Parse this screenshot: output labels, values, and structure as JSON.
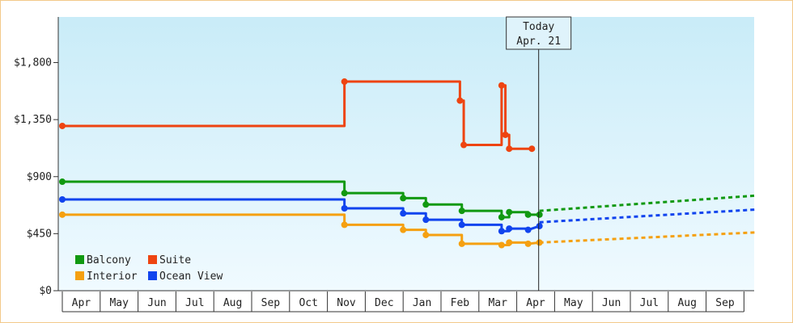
{
  "chart_data": {
    "type": "line",
    "title": "",
    "xlabel": "",
    "ylabel": "",
    "ylim": [
      0,
      2160
    ],
    "y_ticks": [
      {
        "value": 0,
        "label": "$0"
      },
      {
        "value": 450,
        "label": "$450"
      },
      {
        "value": 900,
        "label": "$900"
      },
      {
        "value": 1350,
        "label": "$1,350"
      },
      {
        "value": 1800,
        "label": "$1,800"
      }
    ],
    "x_months": [
      "Apr",
      "May",
      "Jun",
      "Jul",
      "Aug",
      "Sep",
      "Oct",
      "Nov",
      "Dec",
      "Jan",
      "Feb",
      "Mar",
      "Apr",
      "May",
      "Jun",
      "Jul",
      "Aug",
      "Sep"
    ],
    "x_range": [
      0,
      18.3
    ],
    "today": {
      "line1": "Today",
      "line2": "Apr. 21",
      "x": 12.6
    },
    "legend_position": "bottom-left",
    "series": [
      {
        "name": "Balcony",
        "color": "#119911",
        "points": [
          [
            0,
            860
          ],
          [
            7.45,
            860
          ],
          [
            7.45,
            770
          ],
          [
            9.0,
            770
          ],
          [
            9.0,
            730
          ],
          [
            9.6,
            730
          ],
          [
            9.6,
            680
          ],
          [
            10.55,
            680
          ],
          [
            10.55,
            630
          ],
          [
            11.6,
            630
          ],
          [
            11.6,
            580
          ],
          [
            11.8,
            580
          ],
          [
            11.8,
            620
          ],
          [
            12.3,
            620
          ],
          [
            12.3,
            600
          ],
          [
            12.6,
            600
          ]
        ],
        "forecast": [
          [
            12.6,
            630
          ],
          [
            18.3,
            750
          ]
        ]
      },
      {
        "name": "Suite",
        "color": "#ee4411",
        "points": [
          [
            0,
            1300
          ],
          [
            7.45,
            1300
          ],
          [
            7.45,
            1650
          ],
          [
            9.0,
            1650
          ],
          [
            9.0,
            1650
          ],
          [
            9.6,
            1650
          ],
          [
            10.5,
            1650
          ],
          [
            10.5,
            1500
          ],
          [
            10.6,
            1500
          ],
          [
            10.6,
            1150
          ],
          [
            11.6,
            1150
          ],
          [
            11.6,
            1620
          ],
          [
            11.7,
            1620
          ],
          [
            11.7,
            1230
          ],
          [
            11.8,
            1230
          ],
          [
            11.8,
            1120
          ],
          [
            12.4,
            1120
          ]
        ],
        "forecast": []
      },
      {
        "name": "Interior",
        "color": "#f5a010",
        "points": [
          [
            0,
            600
          ],
          [
            7.45,
            600
          ],
          [
            7.45,
            520
          ],
          [
            9.0,
            520
          ],
          [
            9.0,
            480
          ],
          [
            9.6,
            480
          ],
          [
            9.6,
            440
          ],
          [
            10.55,
            440
          ],
          [
            10.55,
            370
          ],
          [
            11.6,
            370
          ],
          [
            11.6,
            360
          ],
          [
            11.8,
            360
          ],
          [
            11.8,
            380
          ],
          [
            12.3,
            380
          ],
          [
            12.3,
            370
          ],
          [
            12.6,
            380
          ]
        ],
        "forecast": [
          [
            12.6,
            380
          ],
          [
            18.3,
            460
          ]
        ]
      },
      {
        "name": "Ocean View",
        "color": "#1144ee",
        "points": [
          [
            0,
            720
          ],
          [
            7.45,
            720
          ],
          [
            7.45,
            650
          ],
          [
            9.0,
            650
          ],
          [
            9.0,
            610
          ],
          [
            9.6,
            610
          ],
          [
            9.6,
            560
          ],
          [
            10.55,
            560
          ],
          [
            10.55,
            520
          ],
          [
            11.6,
            520
          ],
          [
            11.6,
            470
          ],
          [
            11.8,
            470
          ],
          [
            11.8,
            490
          ],
          [
            12.3,
            490
          ],
          [
            12.3,
            480
          ],
          [
            12.6,
            510
          ]
        ],
        "forecast": [
          [
            12.6,
            540
          ],
          [
            18.3,
            640
          ]
        ]
      }
    ]
  }
}
